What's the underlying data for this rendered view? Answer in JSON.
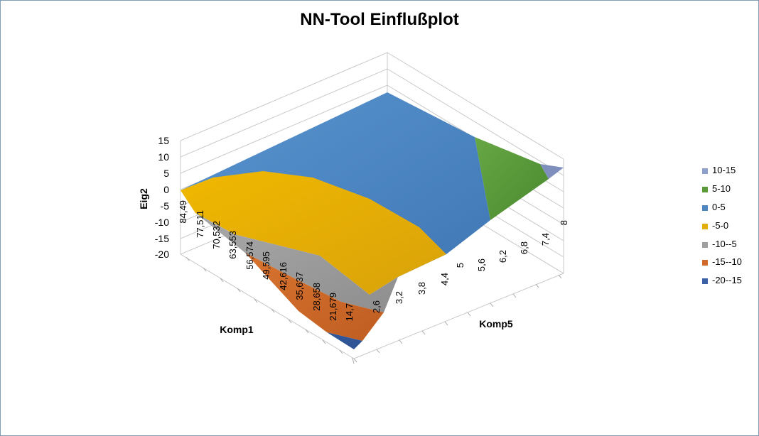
{
  "chart_data": {
    "type": "surface",
    "title": "NN-Tool Einflußplot",
    "xlabel": "Komp1",
    "ylabel": "Komp5",
    "zlabel": "Eig2",
    "x_ticks": [
      "84,49",
      "77,511",
      "70,532",
      "63,553",
      "56,574",
      "49,595",
      "42,616",
      "35,637",
      "28,658",
      "21,679",
      "14,7"
    ],
    "y_ticks": [
      "2,6",
      "3,2",
      "3,8",
      "4,4",
      "5",
      "5,6",
      "6,2",
      "6,8",
      "7,4",
      "8"
    ],
    "z_ticks": [
      "15",
      "10",
      "5",
      "0",
      "-5",
      "-10",
      "-15",
      "-20"
    ],
    "zlim": [
      -20,
      15
    ],
    "legend_position": "right",
    "legend": [
      {
        "label": "10-15",
        "color": "#8e9fcd"
      },
      {
        "label": "5-10",
        "color": "#5a9a3b"
      },
      {
        "label": "0-5",
        "color": "#4f86c2"
      },
      {
        "label": "-5-0",
        "color": "#e3ad0f"
      },
      {
        "label": "-10--5",
        "color": "#a0a0a0"
      },
      {
        "label": "-15--10",
        "color": "#cf6a2c"
      },
      {
        "label": "-20--15",
        "color": "#3a62a5"
      }
    ]
  }
}
